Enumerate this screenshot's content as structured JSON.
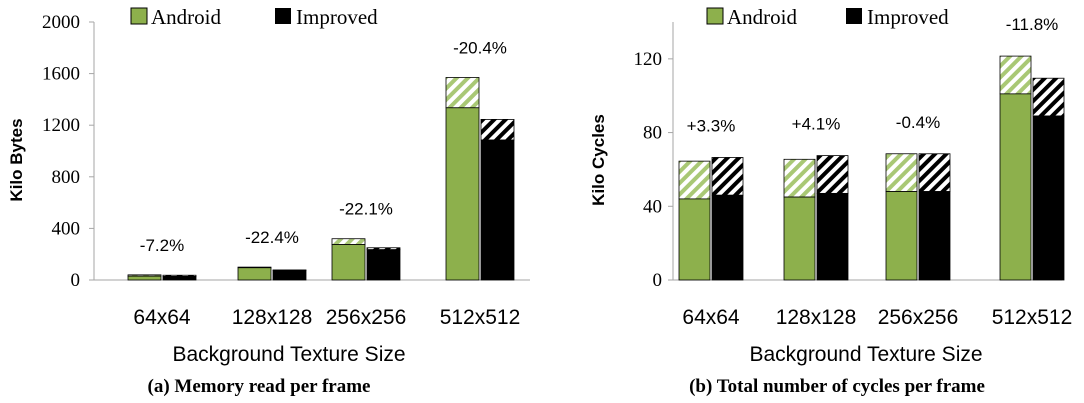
{
  "colors": {
    "android": "#8DB04C",
    "improved": "#000000",
    "android_hatch": "#A9C875",
    "improved_hatch": "#000000",
    "axis": "#A6A6A6"
  },
  "chart_data": [
    {
      "type": "bar",
      "stacked_with_hatched_top": true,
      "title": "",
      "caption": "(a) Memory read per frame",
      "xlabel": "Background Texture Size",
      "ylabel": "Kilo Bytes",
      "ylim": [
        0,
        2000
      ],
      "yticks": [
        "0",
        "400",
        "800",
        "1200",
        "1600",
        "2000"
      ],
      "ytick_values": [
        0,
        400,
        800,
        1200,
        1600,
        2000
      ],
      "categories": [
        "64x64",
        "128x128",
        "256x256",
        "512x512"
      ],
      "legend": {
        "position": "top",
        "entries": [
          "Android",
          "Improved"
        ]
      },
      "series": [
        {
          "name": "Android",
          "solid": [
            30,
            95,
            275,
            1335
          ],
          "total": [
            40,
            100,
            320,
            1570
          ]
        },
        {
          "name": "Improved",
          "solid": [
            28,
            75,
            235,
            1085
          ],
          "total": [
            37,
            78,
            250,
            1245
          ]
        }
      ],
      "annotations": [
        "-7.2%",
        "-22.4%",
        "-22.1%",
        "-20.4%"
      ]
    },
    {
      "type": "bar",
      "stacked_with_hatched_top": true,
      "title": "",
      "caption": "(b) Total number of cycles per frame",
      "xlabel": "Background Texture Size",
      "ylabel": "Kilo Cycles",
      "ylim": [
        0,
        140
      ],
      "yticks": [
        "0",
        "40",
        "80",
        "120"
      ],
      "ytick_values": [
        0,
        40,
        80,
        120
      ],
      "categories": [
        "64x64",
        "128x128",
        "256x256",
        "512x512"
      ],
      "legend": {
        "position": "top",
        "entries": [
          "Android",
          "Improved"
        ]
      },
      "series": [
        {
          "name": "Android",
          "solid": [
            44,
            45,
            48,
            101
          ],
          "total": [
            64.5,
            65.5,
            68.5,
            121.5
          ]
        },
        {
          "name": "Improved",
          "solid": [
            46,
            47,
            48,
            89
          ],
          "total": [
            66.5,
            67.5,
            68.5,
            109.5
          ]
        }
      ],
      "annotations": [
        "+3.3%",
        "+4.1%",
        "-0.4%",
        "-11.8%"
      ]
    }
  ]
}
